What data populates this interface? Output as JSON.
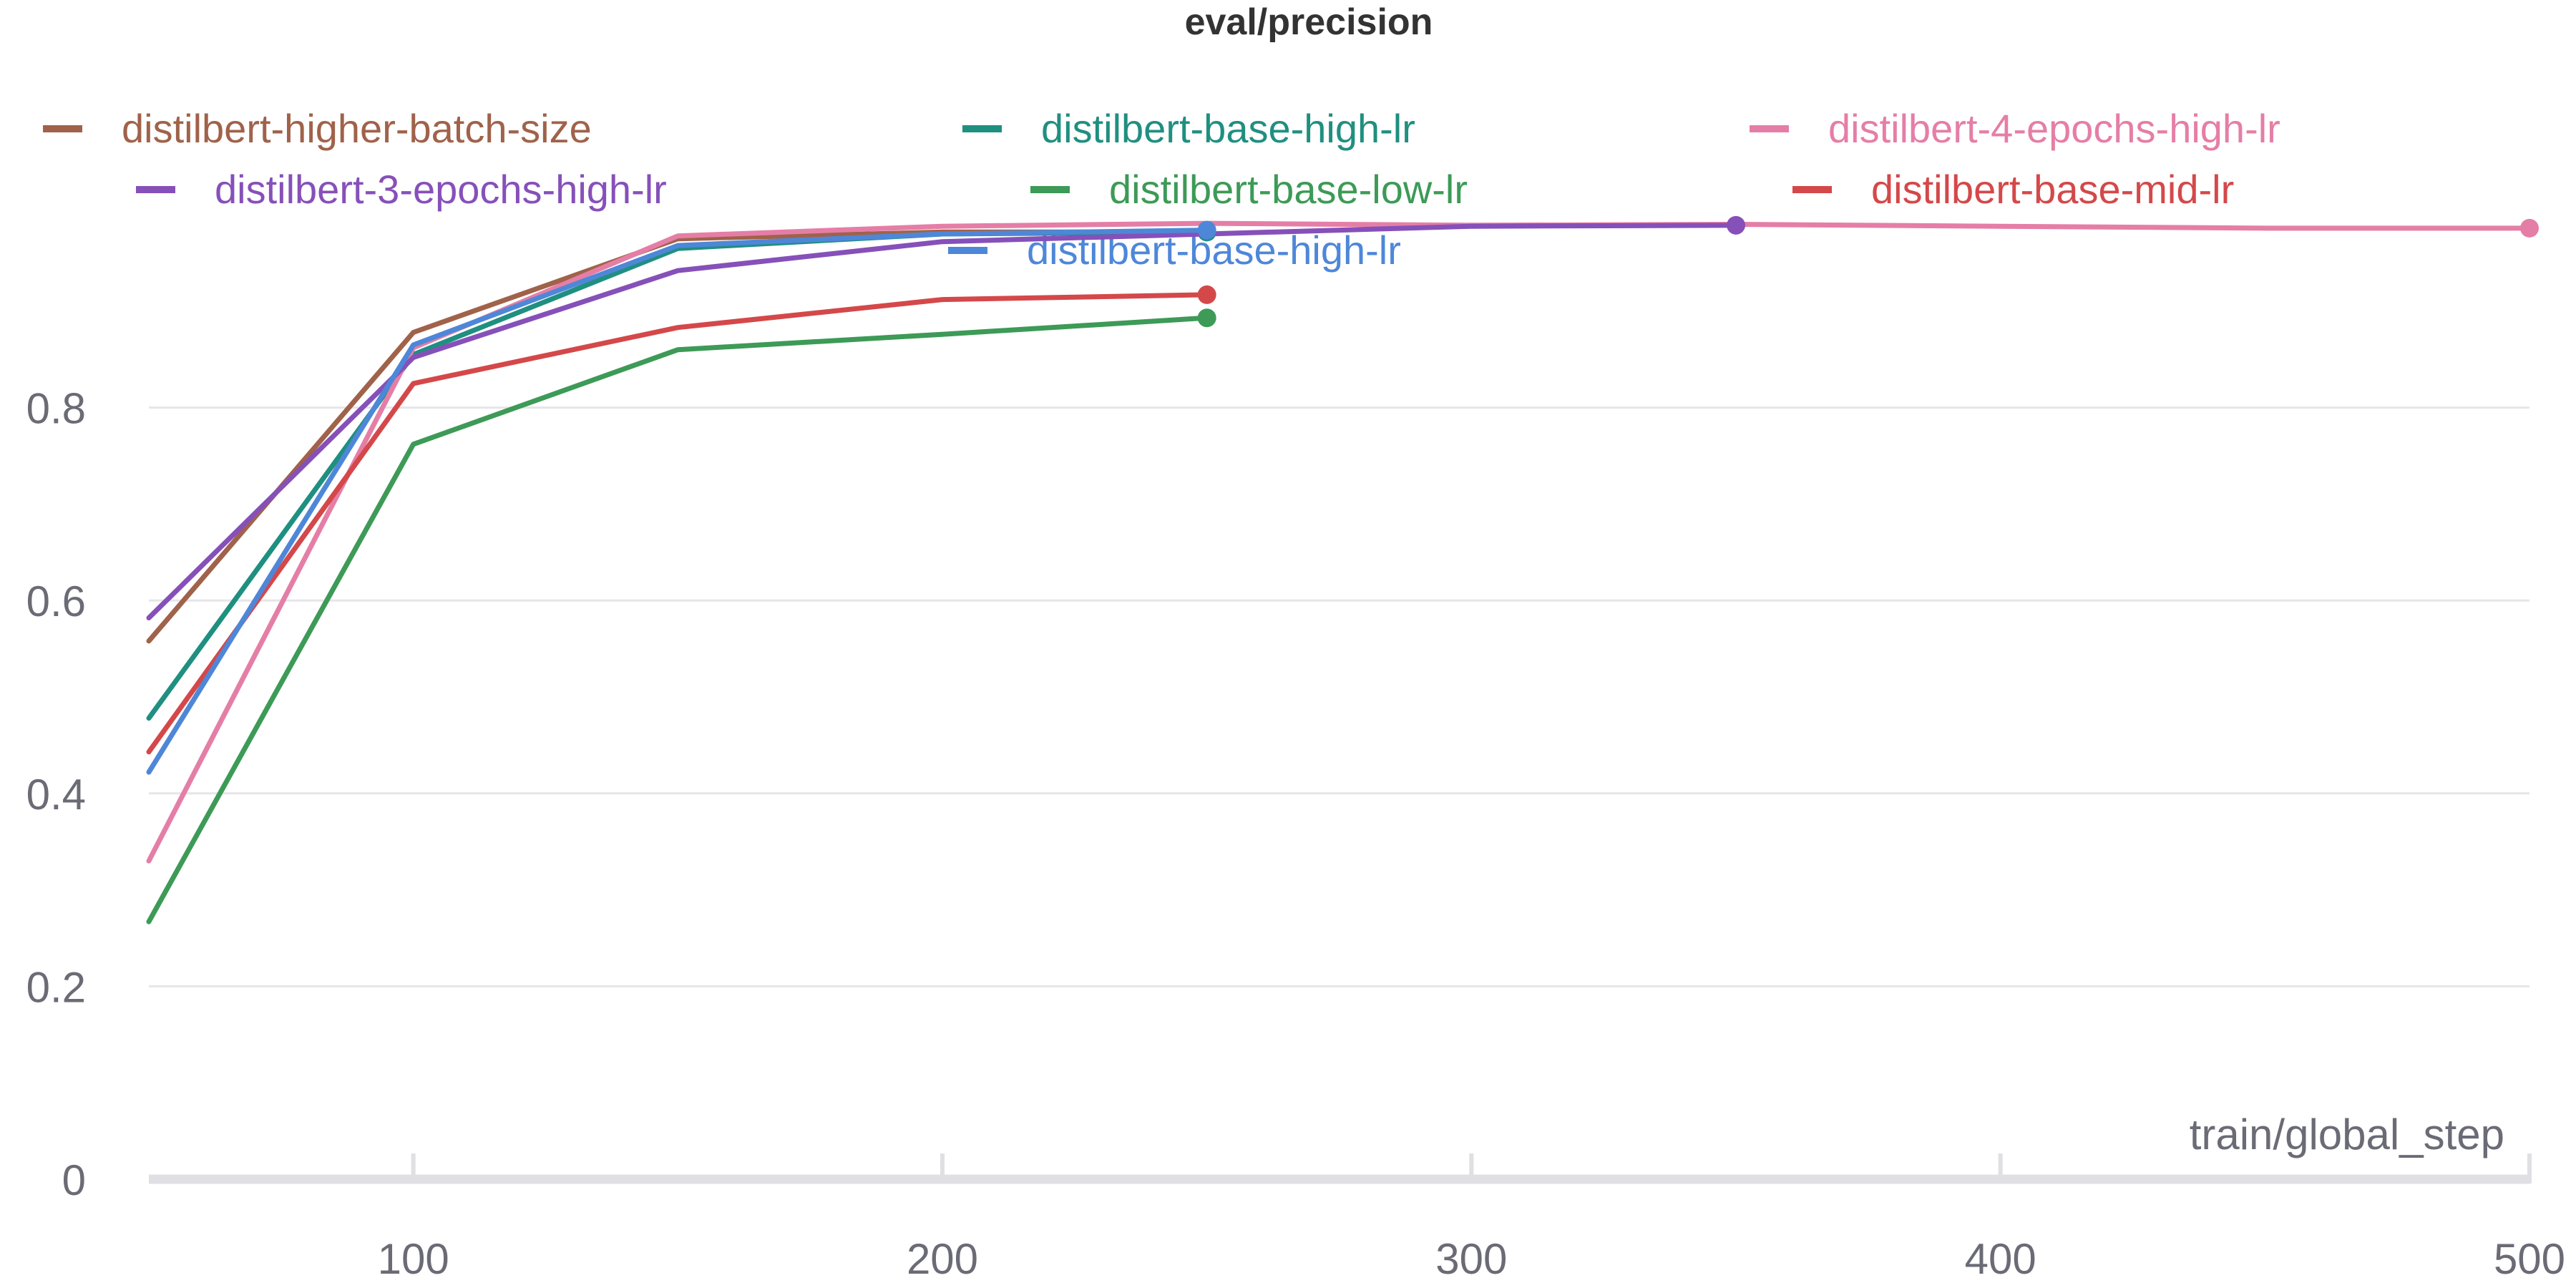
{
  "chart_data": {
    "type": "line",
    "title": "eval/precision",
    "xlabel": "train/global_step",
    "ylabel": "",
    "xlim": [
      50,
      500
    ],
    "ylim": [
      0,
      1.0
    ],
    "x_ticks": [
      100,
      200,
      300,
      400,
      500
    ],
    "y_ticks": [
      0,
      0.2,
      0.4,
      0.6,
      0.8
    ],
    "y_tick_labels": [
      "0",
      "0.2",
      "0.4",
      "0.6",
      "0.8"
    ],
    "grid": "horizontal",
    "legend_position": "top",
    "series": [
      {
        "name": "distilbert-higher-batch-size",
        "color": "#a0624a",
        "x": [
          50,
          100,
          150,
          200,
          250
        ],
        "y": [
          0.558,
          0.878,
          0.975,
          0.982,
          0.982
        ]
      },
      {
        "name": "distilbert-base-high-lr",
        "color": "#1f8f80",
        "x": [
          50,
          100,
          150,
          200,
          250
        ],
        "y": [
          0.478,
          0.855,
          0.965,
          0.98,
          0.982
        ]
      },
      {
        "name": "distilbert-4-epochs-high-lr",
        "color": "#e57ea6",
        "x": [
          50,
          100,
          150,
          200,
          250,
          300,
          350,
          400,
          450,
          500
        ],
        "y": [
          0.33,
          0.862,
          0.978,
          0.988,
          0.991,
          0.989,
          0.99,
          0.988,
          0.986,
          0.986
        ]
      },
      {
        "name": "distilbert-3-epochs-high-lr",
        "color": "#8650b9",
        "x": [
          50,
          100,
          150,
          200,
          250,
          300,
          350
        ],
        "y": [
          0.582,
          0.852,
          0.942,
          0.972,
          0.98,
          0.988,
          0.989
        ]
      },
      {
        "name": "distilbert-base-low-lr",
        "color": "#3d9a57",
        "x": [
          50,
          100,
          150,
          200,
          250
        ],
        "y": [
          0.267,
          0.762,
          0.86,
          0.876,
          0.893
        ]
      },
      {
        "name": "distilbert-base-mid-lr",
        "color": "#d4484a",
        "x": [
          50,
          100,
          150,
          200,
          250
        ],
        "y": [
          0.443,
          0.825,
          0.883,
          0.912,
          0.917
        ]
      },
      {
        "name": "distilbert-base-high-lr",
        "color": "#4e87d8",
        "x": [
          50,
          100,
          150,
          200,
          250
        ],
        "y": [
          0.422,
          0.865,
          0.968,
          0.98,
          0.984
        ]
      }
    ]
  }
}
